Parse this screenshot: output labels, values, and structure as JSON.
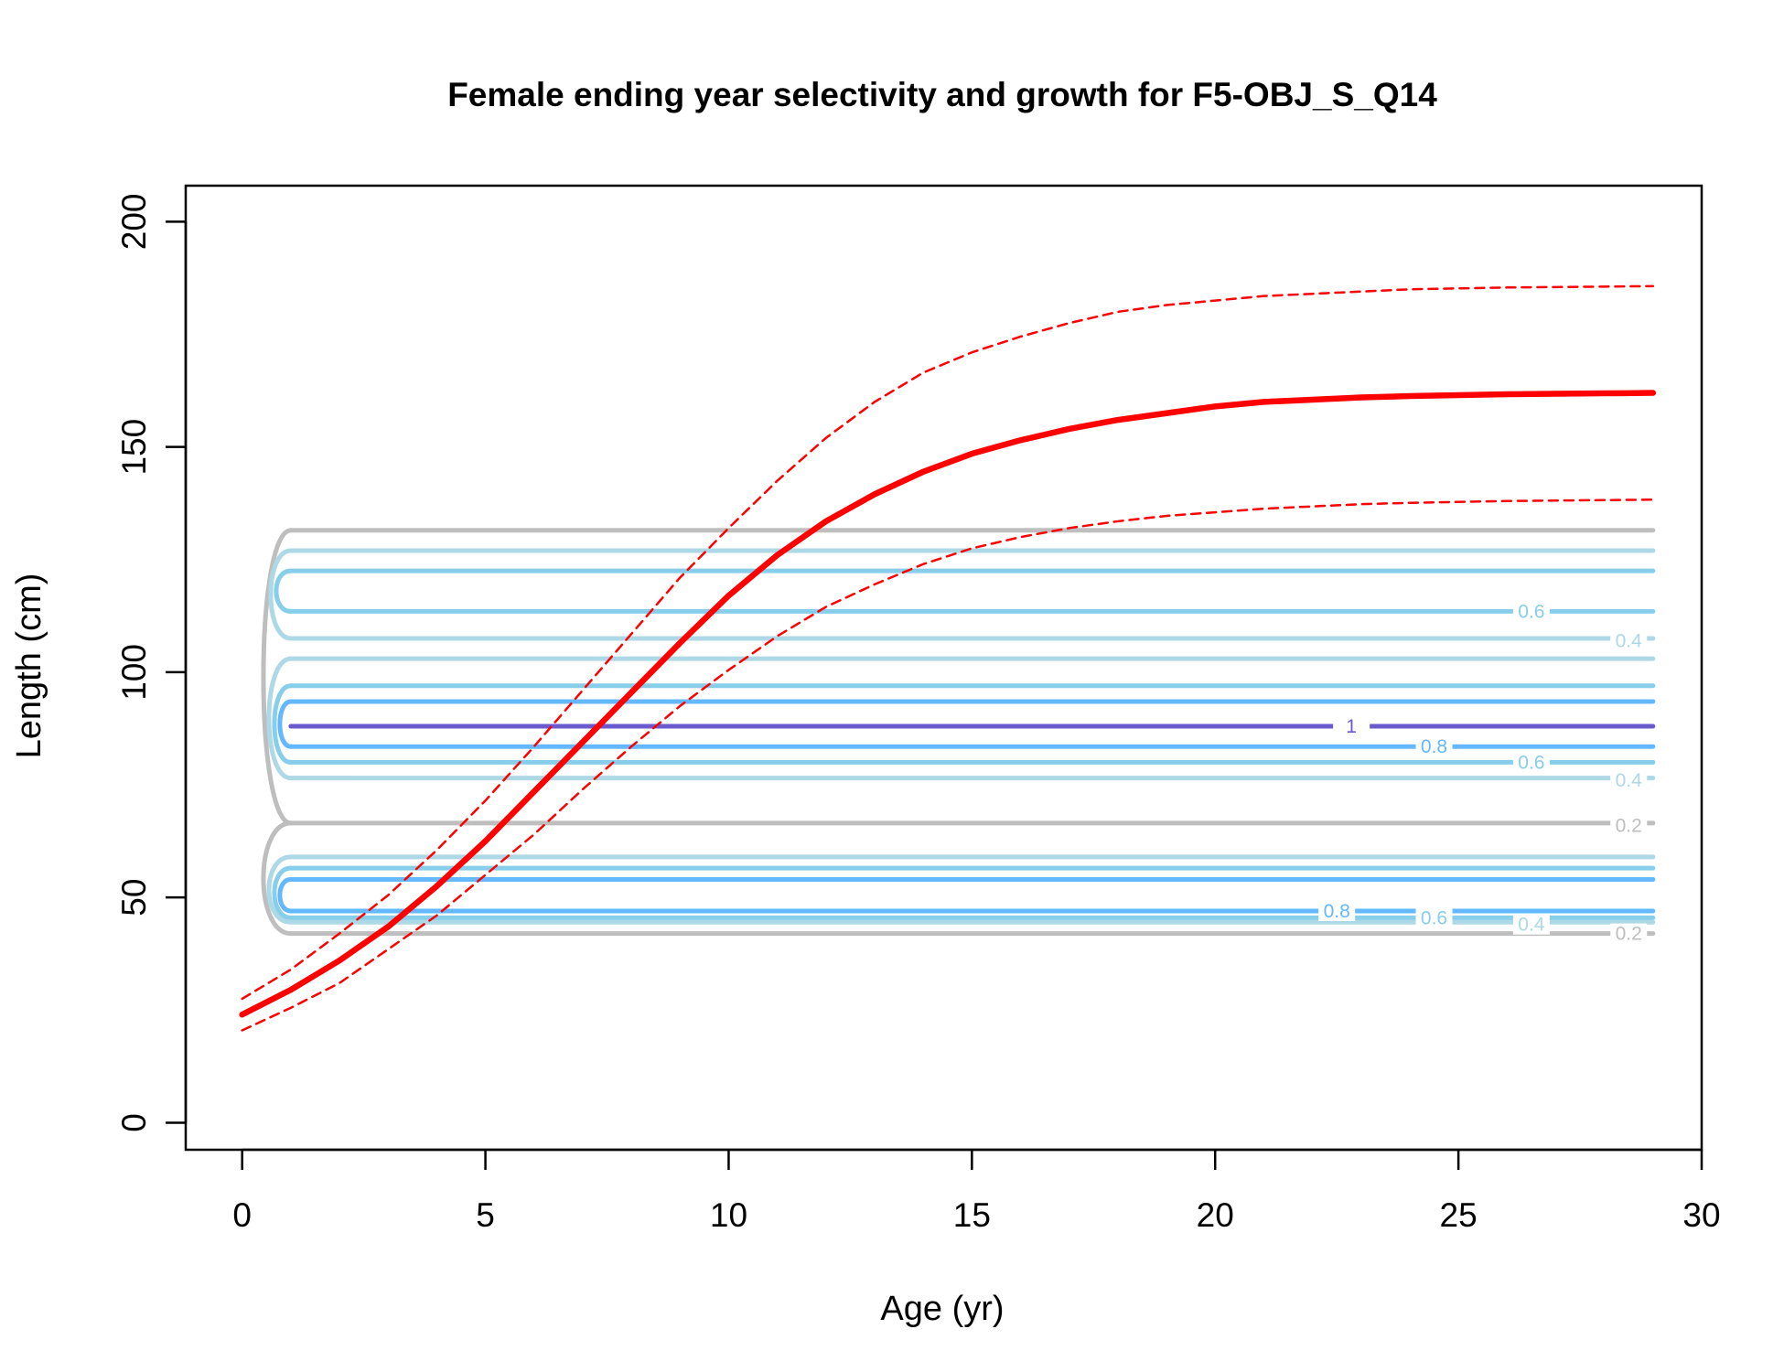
{
  "chart_data": {
    "type": "line",
    "title": "Female ending year selectivity and growth for F5-OBJ_S_Q14",
    "xlabel": "Age (yr)",
    "ylabel": "Length (cm)",
    "xlim": [
      -1.16,
      30.0
    ],
    "ylim": [
      -6,
      208
    ],
    "x_ticks": [
      0,
      5,
      10,
      15,
      20,
      25,
      30
    ],
    "y_ticks": [
      0,
      50,
      100,
      150,
      200
    ],
    "grid": false,
    "series": [
      {
        "role": "mean",
        "style": "solid",
        "color": "#ff0000",
        "x": [
          0,
          1,
          2,
          3,
          4,
          5,
          6,
          7,
          8,
          9,
          10,
          11,
          12,
          13,
          14,
          15,
          16,
          17,
          18,
          19,
          20,
          21,
          22,
          23,
          24,
          25,
          26,
          27,
          28,
          29
        ],
        "y": [
          24,
          29.5,
          36,
          43.5,
          52.5,
          62.5,
          73.5,
          84.5,
          95.5,
          106.5,
          117,
          126,
          133.5,
          139.5,
          144.5,
          148.5,
          151.5,
          154,
          156,
          157.5,
          159,
          160,
          160.5,
          161,
          161.3,
          161.5,
          161.7,
          161.8,
          161.9,
          162
        ]
      },
      {
        "role": "upper",
        "style": "dashed",
        "color": "#ff0000",
        "x": [
          0,
          1,
          2,
          3,
          4,
          5,
          6,
          7,
          8,
          9,
          10,
          11,
          12,
          13,
          14,
          15,
          16,
          17,
          18,
          19,
          20,
          21,
          22,
          23,
          24,
          25,
          26,
          27,
          28,
          29
        ],
        "y": [
          27.5,
          34,
          42,
          50.5,
          60.5,
          71.5,
          83.5,
          96,
          108.5,
          121,
          132,
          142.5,
          152,
          160,
          166.5,
          171,
          174.5,
          177.5,
          180,
          181.5,
          182.5,
          183.5,
          184,
          184.5,
          185,
          185.2,
          185.4,
          185.5,
          185.6,
          185.7
        ]
      },
      {
        "role": "lower",
        "style": "dashed",
        "color": "#ff0000",
        "x": [
          0,
          1,
          2,
          3,
          4,
          5,
          6,
          7,
          8,
          9,
          10,
          11,
          12,
          13,
          14,
          15,
          16,
          17,
          18,
          19,
          20,
          21,
          22,
          23,
          24,
          25,
          26,
          27,
          28,
          29
        ],
        "y": [
          20.5,
          25.5,
          31,
          38.5,
          46,
          55,
          64,
          74,
          83.5,
          92.5,
          100.5,
          108,
          114.5,
          119.5,
          124,
          127.5,
          130,
          132,
          133.5,
          134.7,
          135.5,
          136.3,
          136.8,
          137.3,
          137.6,
          137.8,
          138,
          138.1,
          138.2,
          138.3
        ]
      }
    ],
    "contours": {
      "x_start": 1,
      "x_end": 29,
      "levels": [
        {
          "level": 0.2,
          "color": "#bebebe",
          "y": [
            42,
            66.5,
            131.5
          ]
        },
        {
          "level": 0.4,
          "color": "#add8e6",
          "y": [
            44.5,
            59,
            76.5,
            103,
            107.5,
            127
          ]
        },
        {
          "level": 0.6,
          "color": "#87ceeb",
          "y": [
            45.5,
            56.5,
            80,
            97,
            113.5,
            122.5
          ]
        },
        {
          "level": 0.8,
          "color": "#63b8ff",
          "y": [
            47,
            54,
            83.5,
            93.5
          ]
        },
        {
          "level": 1,
          "color": "#6a5acd",
          "y": [
            88
          ]
        }
      ],
      "labels": [
        {
          "text": "0.6",
          "x": 26.5,
          "y": 113.5,
          "color": "#87ceeb"
        },
        {
          "text": "0.4",
          "x": 28.5,
          "y": 107,
          "color": "#add8e6"
        },
        {
          "text": "1",
          "x": 22.8,
          "y": 88,
          "color": "#6a5acd"
        },
        {
          "text": "0.8",
          "x": 24.5,
          "y": 83.5,
          "color": "#63b8ff"
        },
        {
          "text": "0.6",
          "x": 26.5,
          "y": 80,
          "color": "#87ceeb"
        },
        {
          "text": "0.4",
          "x": 28.5,
          "y": 76,
          "color": "#add8e6"
        },
        {
          "text": "0.2",
          "x": 28.5,
          "y": 66,
          "color": "#bebebe"
        },
        {
          "text": "0.8",
          "x": 22.5,
          "y": 47,
          "color": "#63b8ff"
        },
        {
          "text": "0.6",
          "x": 24.5,
          "y": 45.5,
          "color": "#87ceeb"
        },
        {
          "text": "0.4",
          "x": 26.5,
          "y": 44,
          "color": "#add8e6"
        },
        {
          "text": "0.2",
          "x": 28.5,
          "y": 42,
          "color": "#bebebe"
        }
      ]
    }
  }
}
